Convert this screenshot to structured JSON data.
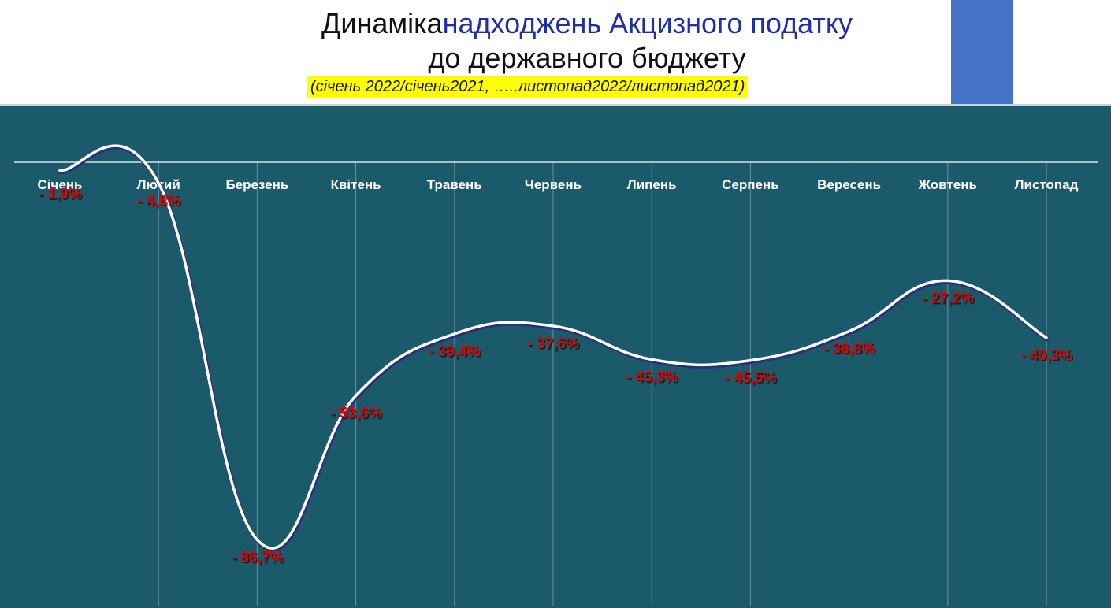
{
  "title": {
    "line1_plain": "Динаміка",
    "line1_accent": "надходжень Акцизного податку",
    "line2": "до державного бюджету",
    "subtitle": "(січень 2022/січень2021, …..листопад2022/листопад2021)"
  },
  "colors": {
    "panel_background": "#1b5a6a",
    "accent_block": "#4472c4",
    "title_accent": "#1f2fa8",
    "subtitle_highlight": "#ffff00",
    "data_label": "#e00000",
    "line": "#ffffff"
  },
  "chart_data": {
    "type": "line",
    "title": "Динаміка надходжень Акцизного податку до державного бюджету",
    "subtitle": "(січень 2022/січень2021, …..листопад2022/листопад2021)",
    "categories": [
      "Січень",
      "Лютий",
      "Березень",
      "Квітень",
      "Травень",
      "Червень",
      "Липень",
      "Серпень",
      "Вересень",
      "Жовтень",
      "Листопад"
    ],
    "values": [
      -1.9,
      -4.8,
      -86.7,
      -53.6,
      -39.4,
      -37.6,
      -45.3,
      -45.5,
      -38.8,
      -27.2,
      -40.3
    ],
    "data_labels": [
      "- 1,9%",
      "- 4,8%",
      "- 86,7%",
      "- 53,6%",
      "- 39,4%",
      "- 37,6%",
      "- 45,3%",
      "- 45,5%",
      "- 38,8%",
      "- 27,2%",
      "- 40,3%"
    ],
    "ylim": [
      -100,
      0
    ],
    "xlabel": "",
    "ylabel": "",
    "smooth": true,
    "grid": "vertical",
    "legend": "none"
  }
}
